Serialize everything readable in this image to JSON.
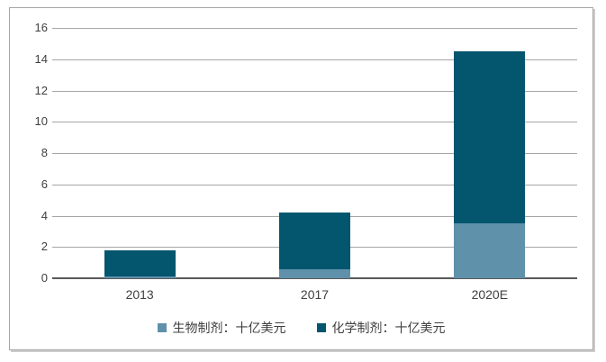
{
  "chart_data": {
    "type": "bar",
    "stacked": true,
    "title": "",
    "categories": [
      "2013",
      "2017",
      "2020E"
    ],
    "series": [
      {
        "name": "生物制剂：十亿美元",
        "color": "#5f91ab",
        "values": [
          0.1,
          0.6,
          3.5
        ]
      },
      {
        "name": "化学制剂：十亿美元",
        "color": "#04556e",
        "values": [
          1.7,
          3.6,
          11.0
        ]
      }
    ],
    "yticks": [
      0,
      2,
      4,
      6,
      8,
      10,
      12,
      14,
      16
    ],
    "ylim": [
      0,
      16
    ],
    "xlabel": "",
    "ylabel": "",
    "grid": true,
    "legend_position": "bottom"
  },
  "colors": {
    "grid": "#a6a6a6",
    "axis": "#595959",
    "frame_border": "#a6a6a6",
    "text": "#404040",
    "background": "#ffffff"
  }
}
